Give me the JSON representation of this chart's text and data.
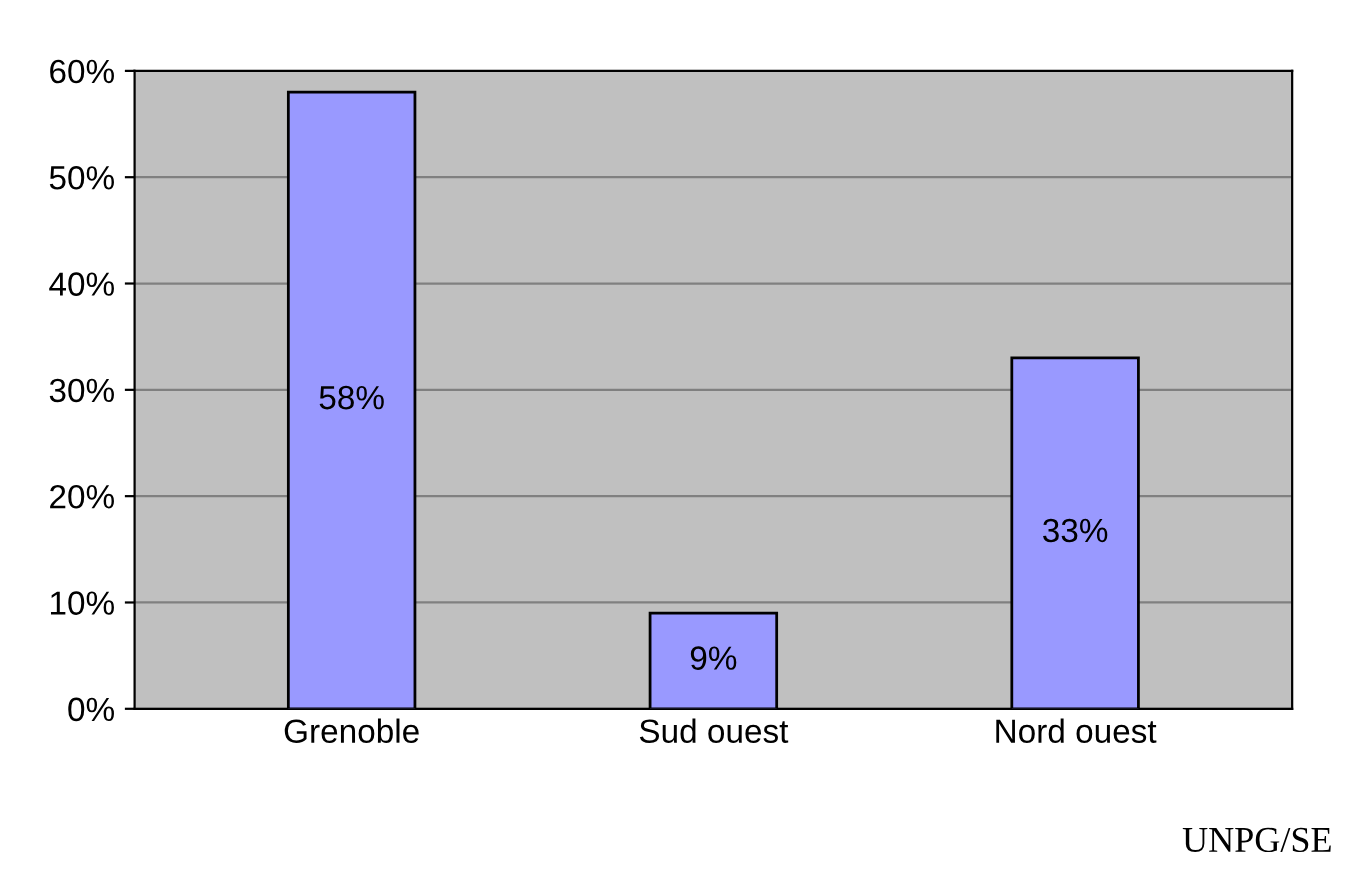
{
  "chart_data": {
    "type": "bar",
    "categories": [
      "Grenoble",
      "Sud ouest",
      "Nord ouest"
    ],
    "values": [
      58,
      9,
      33
    ],
    "value_labels": [
      "58%",
      "9%",
      "33%"
    ],
    "color": "#9999ff",
    "ylim": [
      0,
      60
    ],
    "yticks": [
      {
        "value": 0,
        "label": "0%"
      },
      {
        "value": 10,
        "label": "10%"
      },
      {
        "value": 20,
        "label": "20%"
      },
      {
        "value": 30,
        "label": "30%"
      },
      {
        "value": 40,
        "label": "40%"
      },
      {
        "value": 50,
        "label": "50%"
      },
      {
        "value": 60,
        "label": "60%"
      }
    ],
    "grid": "y",
    "annotations": [
      "UNPG/SE"
    ]
  }
}
